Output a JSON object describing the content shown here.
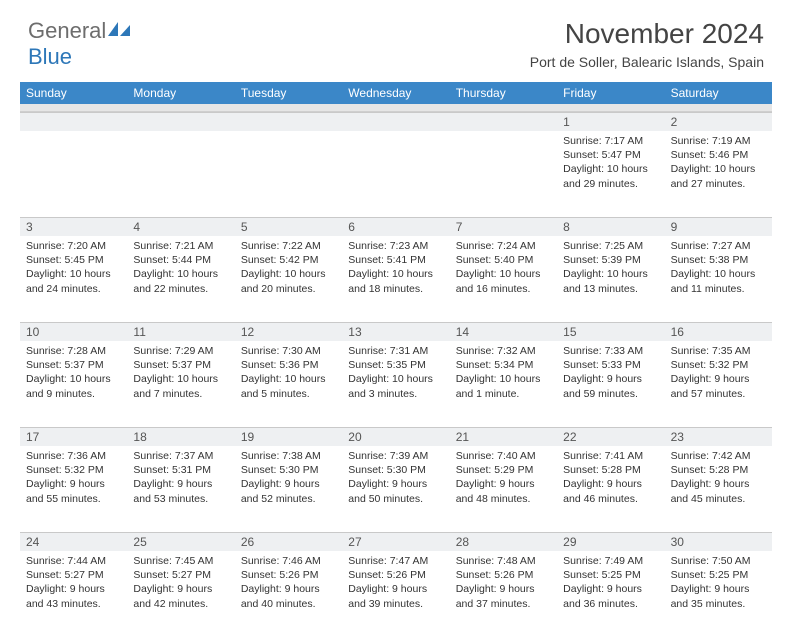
{
  "logo": {
    "word1": "General",
    "word2": "Blue"
  },
  "title": "November 2024",
  "subtitle": "Port de Soller, Balearic Islands, Spain",
  "colors": {
    "header_bg": "#3b87c8",
    "header_text": "#ffffff",
    "daynum_bg": "#eef0f2",
    "spacer_bg": "#e6e6e6",
    "border": "#c9c9c9",
    "body_text": "#333333",
    "title_text": "#444444",
    "logo_gray": "#6d6d6d",
    "logo_blue": "#2d77b8",
    "background": "#ffffff"
  },
  "typography": {
    "title_fontsize": 28,
    "subtitle_fontsize": 14,
    "dayname_fontsize": 12,
    "daynum_fontsize": 12,
    "cell_fontsize": 10.5,
    "logo_fontsize": 22
  },
  "layout": {
    "columns": 7,
    "rows": 5,
    "cell_min_height": 86
  },
  "daynames": [
    "Sunday",
    "Monday",
    "Tuesday",
    "Wednesday",
    "Thursday",
    "Friday",
    "Saturday"
  ],
  "weeks": [
    [
      {
        "n": "",
        "lines": [
          "",
          "",
          "",
          ""
        ]
      },
      {
        "n": "",
        "lines": [
          "",
          "",
          "",
          ""
        ]
      },
      {
        "n": "",
        "lines": [
          "",
          "",
          "",
          ""
        ]
      },
      {
        "n": "",
        "lines": [
          "",
          "",
          "",
          ""
        ]
      },
      {
        "n": "",
        "lines": [
          "",
          "",
          "",
          ""
        ]
      },
      {
        "n": "1",
        "lines": [
          "Sunrise: 7:17 AM",
          "Sunset: 5:47 PM",
          "Daylight: 10 hours",
          "and 29 minutes."
        ]
      },
      {
        "n": "2",
        "lines": [
          "Sunrise: 7:19 AM",
          "Sunset: 5:46 PM",
          "Daylight: 10 hours",
          "and 27 minutes."
        ]
      }
    ],
    [
      {
        "n": "3",
        "lines": [
          "Sunrise: 7:20 AM",
          "Sunset: 5:45 PM",
          "Daylight: 10 hours",
          "and 24 minutes."
        ]
      },
      {
        "n": "4",
        "lines": [
          "Sunrise: 7:21 AM",
          "Sunset: 5:44 PM",
          "Daylight: 10 hours",
          "and 22 minutes."
        ]
      },
      {
        "n": "5",
        "lines": [
          "Sunrise: 7:22 AM",
          "Sunset: 5:42 PM",
          "Daylight: 10 hours",
          "and 20 minutes."
        ]
      },
      {
        "n": "6",
        "lines": [
          "Sunrise: 7:23 AM",
          "Sunset: 5:41 PM",
          "Daylight: 10 hours",
          "and 18 minutes."
        ]
      },
      {
        "n": "7",
        "lines": [
          "Sunrise: 7:24 AM",
          "Sunset: 5:40 PM",
          "Daylight: 10 hours",
          "and 16 minutes."
        ]
      },
      {
        "n": "8",
        "lines": [
          "Sunrise: 7:25 AM",
          "Sunset: 5:39 PM",
          "Daylight: 10 hours",
          "and 13 minutes."
        ]
      },
      {
        "n": "9",
        "lines": [
          "Sunrise: 7:27 AM",
          "Sunset: 5:38 PM",
          "Daylight: 10 hours",
          "and 11 minutes."
        ]
      }
    ],
    [
      {
        "n": "10",
        "lines": [
          "Sunrise: 7:28 AM",
          "Sunset: 5:37 PM",
          "Daylight: 10 hours",
          "and 9 minutes."
        ]
      },
      {
        "n": "11",
        "lines": [
          "Sunrise: 7:29 AM",
          "Sunset: 5:37 PM",
          "Daylight: 10 hours",
          "and 7 minutes."
        ]
      },
      {
        "n": "12",
        "lines": [
          "Sunrise: 7:30 AM",
          "Sunset: 5:36 PM",
          "Daylight: 10 hours",
          "and 5 minutes."
        ]
      },
      {
        "n": "13",
        "lines": [
          "Sunrise: 7:31 AM",
          "Sunset: 5:35 PM",
          "Daylight: 10 hours",
          "and 3 minutes."
        ]
      },
      {
        "n": "14",
        "lines": [
          "Sunrise: 7:32 AM",
          "Sunset: 5:34 PM",
          "Daylight: 10 hours",
          "and 1 minute."
        ]
      },
      {
        "n": "15",
        "lines": [
          "Sunrise: 7:33 AM",
          "Sunset: 5:33 PM",
          "Daylight: 9 hours",
          "and 59 minutes."
        ]
      },
      {
        "n": "16",
        "lines": [
          "Sunrise: 7:35 AM",
          "Sunset: 5:32 PM",
          "Daylight: 9 hours",
          "and 57 minutes."
        ]
      }
    ],
    [
      {
        "n": "17",
        "lines": [
          "Sunrise: 7:36 AM",
          "Sunset: 5:32 PM",
          "Daylight: 9 hours",
          "and 55 minutes."
        ]
      },
      {
        "n": "18",
        "lines": [
          "Sunrise: 7:37 AM",
          "Sunset: 5:31 PM",
          "Daylight: 9 hours",
          "and 53 minutes."
        ]
      },
      {
        "n": "19",
        "lines": [
          "Sunrise: 7:38 AM",
          "Sunset: 5:30 PM",
          "Daylight: 9 hours",
          "and 52 minutes."
        ]
      },
      {
        "n": "20",
        "lines": [
          "Sunrise: 7:39 AM",
          "Sunset: 5:30 PM",
          "Daylight: 9 hours",
          "and 50 minutes."
        ]
      },
      {
        "n": "21",
        "lines": [
          "Sunrise: 7:40 AM",
          "Sunset: 5:29 PM",
          "Daylight: 9 hours",
          "and 48 minutes."
        ]
      },
      {
        "n": "22",
        "lines": [
          "Sunrise: 7:41 AM",
          "Sunset: 5:28 PM",
          "Daylight: 9 hours",
          "and 46 minutes."
        ]
      },
      {
        "n": "23",
        "lines": [
          "Sunrise: 7:42 AM",
          "Sunset: 5:28 PM",
          "Daylight: 9 hours",
          "and 45 minutes."
        ]
      }
    ],
    [
      {
        "n": "24",
        "lines": [
          "Sunrise: 7:44 AM",
          "Sunset: 5:27 PM",
          "Daylight: 9 hours",
          "and 43 minutes."
        ]
      },
      {
        "n": "25",
        "lines": [
          "Sunrise: 7:45 AM",
          "Sunset: 5:27 PM",
          "Daylight: 9 hours",
          "and 42 minutes."
        ]
      },
      {
        "n": "26",
        "lines": [
          "Sunrise: 7:46 AM",
          "Sunset: 5:26 PM",
          "Daylight: 9 hours",
          "and 40 minutes."
        ]
      },
      {
        "n": "27",
        "lines": [
          "Sunrise: 7:47 AM",
          "Sunset: 5:26 PM",
          "Daylight: 9 hours",
          "and 39 minutes."
        ]
      },
      {
        "n": "28",
        "lines": [
          "Sunrise: 7:48 AM",
          "Sunset: 5:26 PM",
          "Daylight: 9 hours",
          "and 37 minutes."
        ]
      },
      {
        "n": "29",
        "lines": [
          "Sunrise: 7:49 AM",
          "Sunset: 5:25 PM",
          "Daylight: 9 hours",
          "and 36 minutes."
        ]
      },
      {
        "n": "30",
        "lines": [
          "Sunrise: 7:50 AM",
          "Sunset: 5:25 PM",
          "Daylight: 9 hours",
          "and 35 minutes."
        ]
      }
    ]
  ]
}
